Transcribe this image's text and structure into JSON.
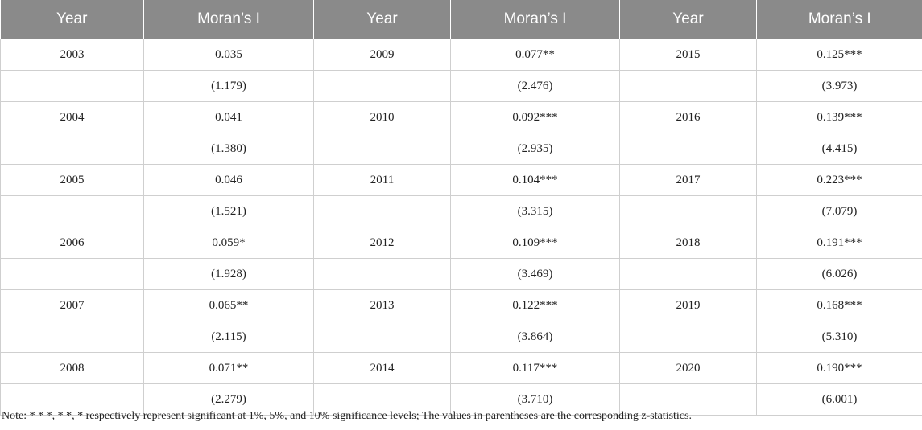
{
  "table": {
    "headers": [
      "Year",
      "Moran’s I",
      "Year",
      "Moran’s I",
      "Year",
      "Moran’s I"
    ],
    "rows": [
      [
        "2003",
        "0.035",
        "2009",
        "0.077**",
        "2015",
        "0.125***"
      ],
      [
        "",
        "(1.179)",
        "",
        "(2.476)",
        "",
        "(3.973)"
      ],
      [
        "2004",
        "0.041",
        "2010",
        "0.092***",
        "2016",
        "0.139***"
      ],
      [
        "",
        "(1.380)",
        "",
        "(2.935)",
        "",
        "(4.415)"
      ],
      [
        "2005",
        "0.046",
        "2011",
        "0.104***",
        "2017",
        "0.223***"
      ],
      [
        "",
        "(1.521)",
        "",
        "(3.315)",
        "",
        "(7.079)"
      ],
      [
        "2006",
        "0.059*",
        "2012",
        "0.109***",
        "2018",
        "0.191***"
      ],
      [
        "",
        "(1.928)",
        "",
        "(3.469)",
        "",
        "(6.026)"
      ],
      [
        "2007",
        "0.065**",
        "2013",
        "0.122***",
        "2019",
        "0.168***"
      ],
      [
        "",
        "(2.115)",
        "",
        "(3.864)",
        "",
        "(5.310)"
      ],
      [
        "2008",
        "0.071**",
        "2014",
        "0.117***",
        "2020",
        "0.190***"
      ],
      [
        "",
        "(2.279)",
        "",
        "(3.710)",
        "",
        "(6.001)"
      ]
    ]
  },
  "note": "Note: * * *, * *, * respectively represent significant at 1%, 5%, and 10% significance levels; The values in parentheses are the corresponding z-statistics."
}
